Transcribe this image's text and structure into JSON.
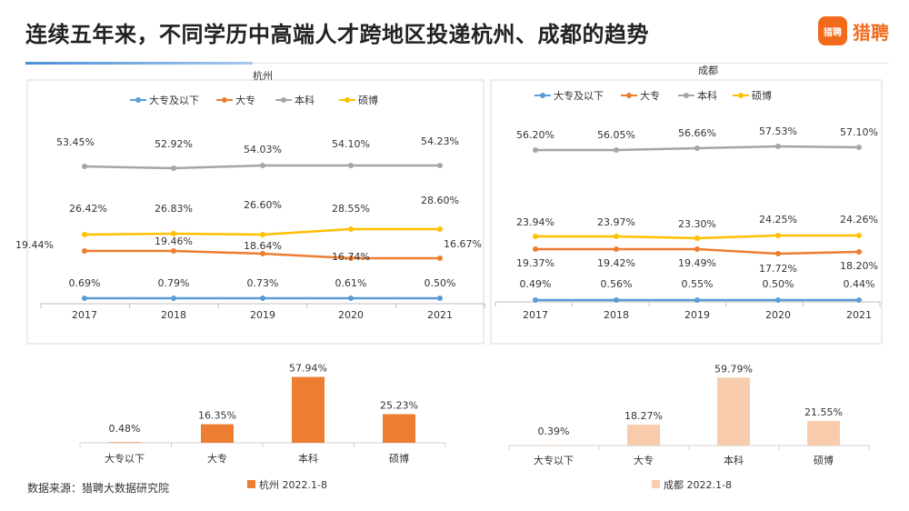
{
  "header": {
    "title": "连续五年来，不同学历中高端人才跨地区投递杭州、成都的趋势",
    "logo_mark": "猎聘",
    "logo_text": "猎聘"
  },
  "footer": {
    "source": "数据来源：猎聘大数据研究院"
  },
  "colors": {
    "大专及以下": "#5b9bd5",
    "大专": "#ed7d31",
    "本科": "#a5a5a5",
    "硕博": "#ffc000",
    "hz_bar": "#ed7d31",
    "cd_bar": "#f8cbad"
  },
  "chart_data": [
    {
      "type": "line",
      "title": "杭州",
      "categories": [
        "2017",
        "2018",
        "2019",
        "2020",
        "2021"
      ],
      "legend": "top",
      "series": [
        {
          "name": "大专及以下",
          "values": [
            0.69,
            0.79,
            0.73,
            0.61,
            0.5
          ]
        },
        {
          "name": "大专",
          "values": [
            19.44,
            19.46,
            18.64,
            16.74,
            16.67
          ]
        },
        {
          "name": "本科",
          "values": [
            53.45,
            52.92,
            54.03,
            54.1,
            54.23
          ]
        },
        {
          "name": "硕博",
          "values": [
            26.42,
            26.83,
            26.6,
            28.55,
            28.6
          ]
        }
      ],
      "value_format": "%"
    },
    {
      "type": "line",
      "title": "成都",
      "categories": [
        "2017",
        "2018",
        "2019",
        "2020",
        "2021"
      ],
      "legend": "top",
      "series": [
        {
          "name": "大专及以下",
          "values": [
            0.49,
            0.56,
            0.55,
            0.5,
            0.44
          ]
        },
        {
          "name": "大专",
          "values": [
            19.37,
            19.42,
            19.49,
            17.72,
            18.2
          ]
        },
        {
          "name": "本科",
          "values": [
            56.2,
            56.05,
            56.66,
            57.53,
            57.1
          ]
        },
        {
          "name": "硕博",
          "values": [
            23.94,
            23.97,
            23.3,
            24.25,
            24.26
          ]
        }
      ],
      "value_format": "%"
    },
    {
      "type": "bar",
      "categories": [
        "大专以下",
        "大专",
        "本科",
        "硕博"
      ],
      "series": [
        {
          "name": "杭州 2022.1-8",
          "values": [
            0.48,
            16.35,
            57.94,
            25.23
          ]
        }
      ],
      "legend": "bottom"
    },
    {
      "type": "bar",
      "categories": [
        "大专以下",
        "大专",
        "本科",
        "硕博"
      ],
      "series": [
        {
          "name": "成都 2022.1-8",
          "values": [
            0.39,
            18.27,
            59.79,
            21.55
          ]
        }
      ],
      "legend": "bottom"
    }
  ]
}
